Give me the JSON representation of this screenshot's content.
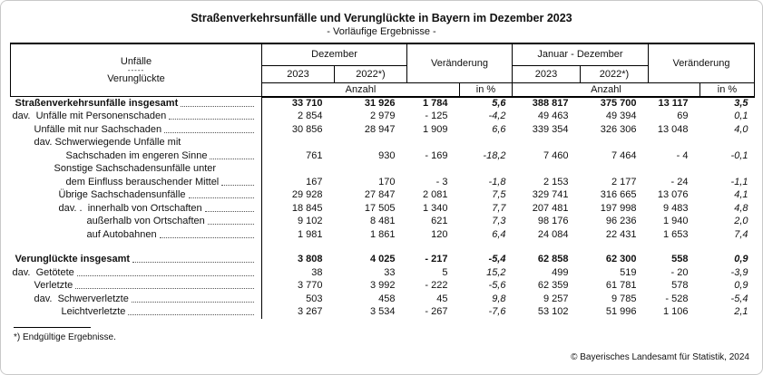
{
  "page": {
    "title": "Straßenverkehrsunfälle und Verunglückte in Bayern im Dezember 2023",
    "subtitle": "- Vorläufige Ergebnisse -",
    "footnote": "*) Endgültige Ergebnisse.",
    "copyright": "© Bayerisches Landesamt für Statistik, 2024"
  },
  "table": {
    "header": {
      "label_line1": "Unfälle",
      "label_line2": "-----",
      "label_line3": "Verunglückte",
      "dezember": "Dezember",
      "jan_dez": "Januar - Dezember",
      "veraenderung": "Veränderung",
      "y2023": "2023",
      "y2022": "2022*)",
      "anzahl": "Anzahl",
      "in_pct": "in %"
    },
    "rows": [
      {
        "label": "Straßenverkehrsunfälle insgesamt",
        "indent": 5,
        "bold": true,
        "leader": true,
        "values": [
          "33 710",
          "31 926",
          "1 784",
          "5,6",
          "388 817",
          "375 700",
          "13 117",
          "3,5"
        ]
      },
      {
        "label": "dav.  Unfälle mit Personenschaden",
        "indent": 2,
        "bold": false,
        "leader": true,
        "values": [
          "2 854",
          "2 979",
          "- 125",
          "-4,2",
          "49 463",
          "49 394",
          "69",
          "0,1"
        ]
      },
      {
        "label": "Unfälle mit nur Sachschaden",
        "indent": 26,
        "bold": false,
        "leader": true,
        "values": [
          "30 856",
          "28 947",
          "1 909",
          "6,6",
          "339 354",
          "326 306",
          "13 048",
          "4,0"
        ]
      },
      {
        "label": "dav. Schwerwiegende Unfälle mit",
        "indent": 26,
        "bold": false,
        "leader": false,
        "values": [
          "",
          "",
          "",
          "",
          "",
          "",
          "",
          ""
        ]
      },
      {
        "label": "Sachschaden im engeren Sinne",
        "indent": 61,
        "bold": false,
        "leader": true,
        "values": [
          "761",
          "930",
          "- 169",
          "-18,2",
          "7 460",
          "7 464",
          "- 4",
          "-0,1"
        ]
      },
      {
        "label": "Sonstige Sachschadensunfälle unter",
        "indent": 48,
        "bold": false,
        "leader": false,
        "values": [
          "",
          "",
          "",
          "",
          "",
          "",
          "",
          ""
        ]
      },
      {
        "label": "dem Einfluss berauschender Mittel",
        "indent": 61,
        "bold": false,
        "leader": true,
        "values": [
          "167",
          "170",
          "- 3",
          "-1,8",
          "2 153",
          "2 177",
          "- 24",
          "-1,1"
        ]
      },
      {
        "label": "Übrige Sachschadensunfälle",
        "indent": 53,
        "bold": false,
        "leader": true,
        "values": [
          "29 928",
          "27 847",
          "2 081",
          "7,5",
          "329 741",
          "316 665",
          "13 076",
          "4,1"
        ]
      },
      {
        "label": "dav. .  innerhalb von Ortschaften",
        "indent": 53,
        "bold": false,
        "leader": true,
        "values": [
          "18 845",
          "17 505",
          "1 340",
          "7,7",
          "207 481",
          "197 998",
          "9 483",
          "4,8"
        ]
      },
      {
        "label": "außerhalb von Ortschaften",
        "indent": 84,
        "bold": false,
        "leader": true,
        "values": [
          "9 102",
          "8 481",
          "621",
          "7,3",
          "98 176",
          "96 236",
          "1 940",
          "2,0"
        ]
      },
      {
        "label": "auf Autobahnen",
        "indent": 84,
        "bold": false,
        "leader": true,
        "values": [
          "1 981",
          "1 861",
          "120",
          "6,4",
          "24 084",
          "22 431",
          "1 653",
          "7,4"
        ]
      },
      {
        "spacer": true
      },
      {
        "label": "Verunglückte insgesamt",
        "indent": 5,
        "bold": true,
        "leader": true,
        "values": [
          "3 808",
          "4 025",
          "- 217",
          "-5,4",
          "62 858",
          "62 300",
          "558",
          "0,9"
        ]
      },
      {
        "label": "dav.  Getötete",
        "indent": 2,
        "bold": false,
        "leader": true,
        "values": [
          "38",
          "33",
          "5",
          "15,2",
          "499",
          "519",
          "- 20",
          "-3,9"
        ]
      },
      {
        "label": "Verletzte",
        "indent": 26,
        "bold": false,
        "leader": true,
        "values": [
          "3 770",
          "3 992",
          "- 222",
          "-5,6",
          "62 359",
          "61 781",
          "578",
          "0,9"
        ]
      },
      {
        "label": "dav.  Schwerverletzte",
        "indent": 26,
        "bold": false,
        "leader": true,
        "values": [
          "503",
          "458",
          "45",
          "9,8",
          "9 257",
          "9 785",
          "- 528",
          "-5,4"
        ]
      },
      {
        "label": "Leichtverletzte",
        "indent": 56,
        "bold": false,
        "leader": true,
        "values": [
          "3 267",
          "3 534",
          "- 267",
          "-7,6",
          "53 102",
          "51 996",
          "1 106",
          "2,1"
        ]
      }
    ]
  }
}
